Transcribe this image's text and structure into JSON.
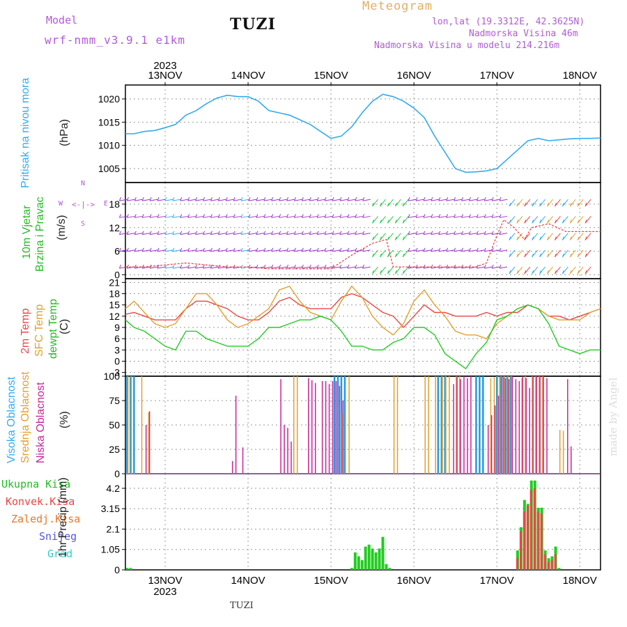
{
  "header": {
    "model_label": "Model",
    "model_name": "wrf-nmm_v3.9.1  e1km",
    "title": "TUZI",
    "meteogram": "Meteogram",
    "lonlat": "lon,lat (19.3312E, 42.3625N)",
    "elev": "Nadmorska Visina 46m",
    "elev_model": "Nadmorska Visina u modelu 214.216m",
    "watermark": "made by Angel",
    "footer_title": "TUZI"
  },
  "colors": {
    "pressure": "#33aaee",
    "temp2m": "#ee4444",
    "sfc": "#e0a030",
    "dew": "#22cc22",
    "high_cloud": "#2299dd",
    "mid_cloud": "#e0a030",
    "low_cloud": "#cc2299",
    "total_rain": "#22cc22",
    "conv_rain": "#ee4444",
    "frz_rain": "#ee7722",
    "snow": "#5555dd",
    "hail": "#33cccc"
  },
  "axes_labels": {
    "p1": [
      "Pritisak na nivou mora",
      "(hPa)"
    ],
    "p2": [
      "10m Vjetar",
      "Brzina i Pravac",
      "(m/s)"
    ],
    "p2_compass": {
      "n": "N",
      "s": "S",
      "w": "W",
      "e": "E"
    },
    "p3": [
      "2m Temp",
      "SFC Temp",
      "dewpt Temp",
      "(C)"
    ],
    "p4": [
      "Visoka Oblacnost",
      "Srednja Oblacnost",
      "Niska Oblacnost",
      "(%)"
    ],
    "p5": [
      "Ukupna Kisa",
      "Konvek.Kisa",
      "Zaledj.Kisa",
      "Snijeg",
      "Grad",
      "1hr Precip (mm)"
    ]
  },
  "chart_data": [
    {
      "type": "line",
      "name": "pressure",
      "x_unit": "hours since 2023-11-12 00:00",
      "xlim": [
        12.5,
        150
      ],
      "ylim": [
        1002,
        1023
      ],
      "yticks": [
        1005,
        1010,
        1015,
        1020
      ],
      "xticks_top": [
        "13NOV",
        "14NOV",
        "15NOV",
        "16NOV",
        "17NOV",
        "18NOV"
      ],
      "year": "2023",
      "series": [
        {
          "x": [
            12.5,
            15,
            18,
            21,
            24,
            27,
            30,
            33,
            36,
            39,
            42,
            45,
            48,
            51,
            54,
            57,
            60,
            63,
            66,
            69,
            72,
            75,
            78,
            81,
            84,
            87,
            90,
            93,
            96,
            99,
            102,
            105,
            108,
            111,
            114,
            117,
            120,
            123,
            126,
            129,
            132,
            135,
            138,
            141,
            144,
            147,
            150
          ],
          "y": [
            1012.5,
            1012.5,
            1013,
            1013.2,
            1013.8,
            1014.5,
            1016.5,
            1017.5,
            1019,
            1020.2,
            1020.8,
            1020.5,
            1020.5,
            1019.5,
            1017.5,
            1017,
            1016.5,
            1015.5,
            1014.5,
            1013,
            1011.5,
            1012,
            1014,
            1017,
            1019.5,
            1021,
            1020.5,
            1019.5,
            1018,
            1016,
            1012,
            1008.5,
            1005,
            1004.2,
            1004.3,
            1004.5,
            1005,
            1007,
            1009,
            1011,
            1011.5,
            1011,
            1011.2,
            1011.4,
            1011.5,
            1011.5,
            1011.6
          ]
        }
      ]
    },
    {
      "type": "line",
      "name": "wind",
      "ylim": [
        -1,
        23.5
      ],
      "yticks": [
        0,
        6,
        12,
        18
      ],
      "series": [
        {
          "x": [
            12.5,
            18,
            24,
            30,
            36,
            42,
            48,
            54,
            60,
            66,
            72,
            78,
            84,
            88,
            90,
            96,
            102,
            108,
            114,
            117,
            120,
            122,
            125,
            128,
            130,
            135,
            140,
            145,
            150
          ],
          "y": [
            2,
            2,
            2.5,
            3,
            2.5,
            2,
            2,
            1.5,
            1.5,
            1.5,
            1.5,
            5,
            8,
            9,
            2,
            2,
            2,
            2,
            2,
            3,
            10,
            14,
            12,
            9,
            12,
            13,
            11,
            11,
            11
          ]
        }
      ]
    },
    {
      "type": "line",
      "name": "temperature",
      "ylim": [
        -4,
        22
      ],
      "yticks": [
        -3,
        0,
        3,
        6,
        9,
        12,
        15,
        18,
        21
      ],
      "series": [
        {
          "x": [
            12.5,
            15,
            18,
            21,
            24,
            27,
            30,
            33,
            36,
            39,
            42,
            45,
            48,
            51,
            54,
            57,
            60,
            63,
            66,
            69,
            72,
            75,
            78,
            81,
            84,
            87,
            90,
            93,
            96,
            99,
            102,
            105,
            108,
            111,
            114,
            117,
            120,
            123,
            126,
            129,
            132,
            135,
            138,
            141,
            144,
            147,
            150
          ],
          "y": [
            12.5,
            13,
            12,
            11,
            11,
            11,
            14,
            16,
            16,
            15,
            14,
            12,
            11,
            11,
            13,
            16,
            17,
            15,
            14,
            14,
            14,
            17,
            18,
            17,
            15,
            13,
            12,
            9,
            12,
            15,
            13,
            13,
            12,
            12,
            12,
            13,
            12,
            13,
            13,
            15,
            14,
            12,
            12,
            11,
            12,
            13,
            14
          ]
        },
        {
          "x": [
            12.5,
            15,
            18,
            21,
            24,
            27,
            30,
            33,
            36,
            39,
            42,
            45,
            48,
            51,
            54,
            57,
            60,
            63,
            66,
            69,
            72,
            75,
            78,
            81,
            84,
            87,
            90,
            93,
            96,
            99,
            102,
            105,
            108,
            111,
            114,
            117,
            120,
            123,
            126,
            129,
            132,
            135,
            138,
            141,
            144,
            147,
            150
          ],
          "y": [
            14,
            16,
            13,
            10,
            9,
            10,
            14,
            18,
            18,
            15,
            11,
            9,
            10,
            12,
            14,
            19,
            20,
            16,
            13,
            12,
            11,
            16,
            20,
            17,
            12,
            9,
            7,
            10,
            16,
            19,
            15,
            12,
            8,
            7,
            7,
            6,
            10,
            12,
            14,
            15,
            14,
            12,
            11,
            11,
            11,
            13,
            14
          ]
        },
        {
          "x": [
            12.5,
            15,
            18,
            21,
            24,
            27,
            30,
            33,
            36,
            39,
            42,
            45,
            48,
            51,
            54,
            57,
            60,
            63,
            66,
            69,
            72,
            75,
            78,
            81,
            84,
            87,
            90,
            93,
            96,
            99,
            102,
            105,
            108,
            111,
            114,
            117,
            120,
            123,
            126,
            129,
            132,
            135,
            138,
            141,
            144,
            147,
            150
          ],
          "y": [
            11,
            9,
            8,
            6,
            4,
            3,
            8,
            8,
            6,
            5,
            4,
            4,
            4,
            6,
            9,
            9,
            10,
            11,
            11,
            12,
            11,
            8,
            4,
            4,
            3,
            3,
            5,
            6,
            9,
            9,
            7,
            2,
            0,
            -2,
            2,
            5,
            11,
            12,
            14,
            15,
            14,
            10,
            4,
            3,
            2,
            3,
            3
          ]
        }
      ]
    },
    {
      "type": "bar",
      "name": "cloud_cover",
      "ylim": [
        0,
        100
      ],
      "yticks": [
        0,
        25,
        50,
        75,
        100
      ],
      "series": [
        {
          "x": [
            13,
            14,
            15,
            73,
            74,
            75,
            76,
            103,
            104,
            105,
            114,
            115,
            116,
            120,
            121,
            122,
            123,
            124
          ],
          "y": [
            100,
            100,
            100,
            100,
            100,
            100,
            100,
            100,
            100,
            100,
            100,
            100,
            100,
            100,
            100,
            100,
            100,
            100
          ]
        },
        {
          "x": [
            13,
            14,
            17,
            19,
            61,
            62,
            75,
            77,
            90,
            91,
            99,
            100,
            102,
            104,
            105,
            106,
            108,
            109,
            118,
            119,
            120,
            121,
            122,
            123,
            124,
            127,
            128,
            130,
            131,
            132,
            133,
            138,
            139
          ],
          "y": [
            100,
            100,
            100,
            63,
            100,
            100,
            62,
            100,
            100,
            100,
            100,
            100,
            100,
            100,
            100,
            100,
            100,
            100,
            98,
            99,
            100,
            100,
            100,
            100,
            100,
            98,
            100,
            100,
            100,
            100,
            100,
            45,
            44
          ]
        },
        {
          "x": [
            18,
            19,
            43,
            44,
            45,
            46,
            47,
            57,
            58,
            59,
            60,
            65,
            66,
            67,
            69,
            70,
            71,
            72,
            73,
            74,
            75,
            76,
            107,
            108,
            109,
            110,
            111,
            112,
            117,
            118,
            119,
            120,
            121,
            122,
            123,
            124,
            125,
            126,
            127,
            128,
            129,
            130,
            131,
            132,
            133,
            134,
            140,
            141
          ],
          "y": [
            50,
            64,
            13,
            80,
            0,
            27,
            0,
            97,
            50,
            47,
            33,
            98,
            96,
            93,
            95,
            95,
            92,
            95,
            95,
            90,
            75,
            0,
            92,
            100,
            97,
            100,
            98,
            100,
            50,
            60,
            70,
            80,
            100,
            98,
            97,
            100,
            97,
            95,
            100,
            98,
            88,
            100,
            100,
            100,
            100,
            98,
            97,
            28
          ]
        }
      ]
    },
    {
      "type": "bar",
      "name": "precip_1hr",
      "ylim": [
        0,
        4.95
      ],
      "yticks": [
        0,
        1.05,
        2.1,
        3.15,
        4.2
      ],
      "series": [
        {
          "name": "Ukupna Kisa",
          "x": [
            13,
            14,
            78,
            79,
            80,
            81,
            82,
            83,
            84,
            85,
            86,
            87,
            88,
            89,
            126,
            127,
            128,
            129,
            130,
            131,
            132,
            133,
            134,
            135,
            136,
            137,
            138
          ],
          "y": [
            0.1,
            0.1,
            0.1,
            0.9,
            0.7,
            0.5,
            1.2,
            1.3,
            1.1,
            0.9,
            1.1,
            1.7,
            0.3,
            0.1,
            1.0,
            2.2,
            3.6,
            3.4,
            4.6,
            4.6,
            3.2,
            3.2,
            1.0,
            0.6,
            0.7,
            1.2,
            0.1
          ]
        },
        {
          "name": "Konvek.Kisa",
          "x": [
            126,
            127,
            128,
            129,
            130,
            131,
            132,
            133,
            134,
            135,
            136,
            137
          ],
          "y": [
            0.6,
            2.0,
            3.0,
            3.3,
            4.1,
            4.2,
            3.0,
            2.9,
            0.8,
            0.4,
            0.5,
            0.8
          ]
        }
      ]
    }
  ]
}
